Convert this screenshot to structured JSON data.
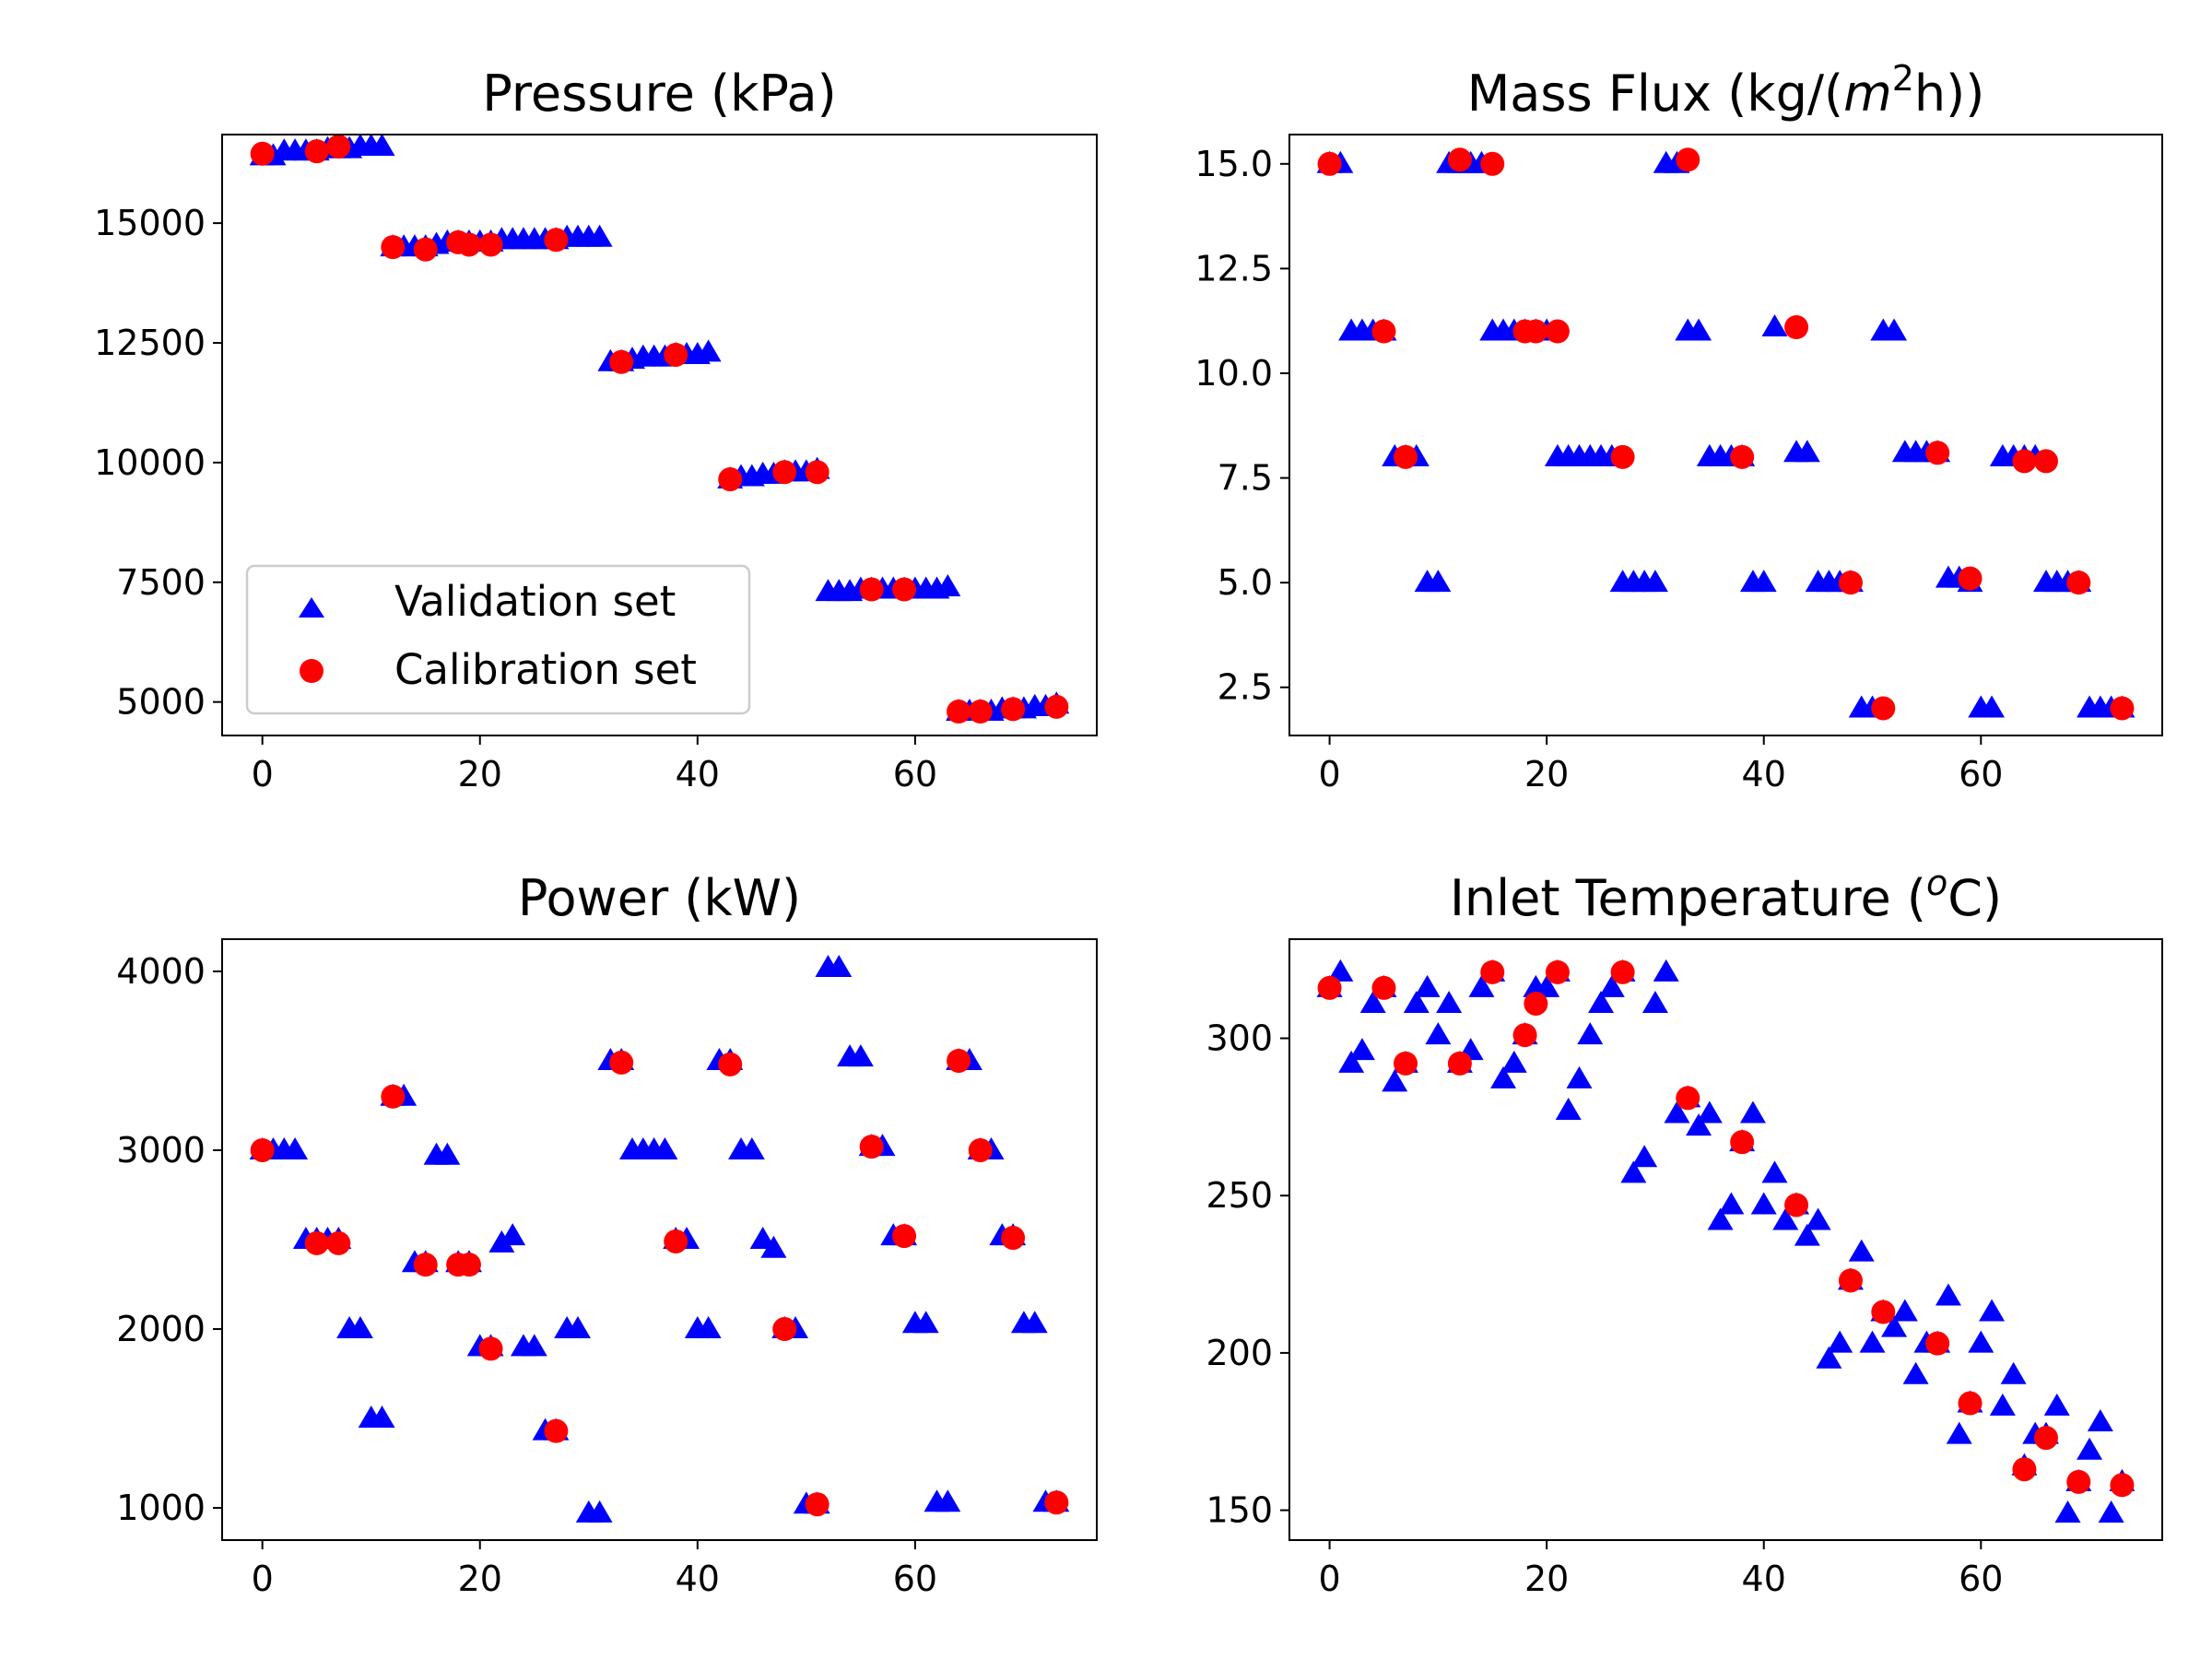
{
  "figure": {
    "legend": {
      "placement": "lower-left of Pressure subplot",
      "items": [
        {
          "label": "Validation set",
          "marker": "triangle",
          "color": "#0000ff"
        },
        {
          "label": "Calibration set",
          "marker": "circle",
          "color": "#ff0000"
        }
      ]
    }
  },
  "chart_data": [
    {
      "type": "scatter",
      "title": "Pressure (kPa)",
      "title_parts": [
        {
          "t": "Pressure (kPa)"
        }
      ],
      "xlabel": "",
      "ylabel": "",
      "xlim": [
        -3.7,
        76.7
      ],
      "ylim": [
        4300,
        16850
      ],
      "xticks": [
        0,
        20,
        40,
        60
      ],
      "yticks": [
        5000,
        7500,
        10000,
        12500,
        15000
      ],
      "legend": true,
      "series": [
        {
          "name": "Validation set",
          "marker": "triangle",
          "color": "#0000ff",
          "x": [
            0,
            1,
            2,
            3,
            4,
            5,
            6,
            7,
            8,
            9,
            10,
            11,
            12,
            13,
            14,
            15,
            16,
            17,
            18,
            19,
            20,
            21,
            22,
            23,
            24,
            25,
            26,
            27,
            28,
            29,
            30,
            31,
            32,
            33,
            34,
            35,
            36,
            37,
            38,
            39,
            40,
            41,
            43,
            44,
            45,
            46,
            47,
            48,
            49,
            50,
            51,
            52,
            53,
            54,
            55,
            56,
            57,
            58,
            59,
            60,
            61,
            62,
            63,
            64,
            65,
            66,
            67,
            68,
            69,
            70,
            71,
            72,
            73
          ],
          "y": [
            16400,
            16400,
            16500,
            16500,
            16500,
            16500,
            16550,
            16550,
            16550,
            16600,
            16600,
            16600,
            14500,
            14500,
            14500,
            14500,
            14550,
            14600,
            14600,
            14600,
            14600,
            14600,
            14650,
            14650,
            14650,
            14650,
            14650,
            14650,
            14700,
            14700,
            14700,
            14700,
            12100,
            12100,
            12150,
            12200,
            12200,
            12200,
            12250,
            12250,
            12250,
            12300,
            9650,
            9700,
            9700,
            9750,
            9750,
            9800,
            9800,
            9800,
            9850,
            7300,
            7300,
            7300,
            7350,
            7350,
            7350,
            7350,
            7350,
            7350,
            7350,
            7350,
            7400,
            4800,
            4800,
            4800,
            4800,
            4850,
            4850,
            4850,
            4900,
            4900,
            4950
          ]
        },
        {
          "name": "Calibration set",
          "marker": "circle",
          "color": "#ff0000",
          "x": [
            0,
            5,
            7,
            12,
            15,
            18,
            19,
            21,
            27,
            33,
            38,
            43,
            48,
            51,
            56,
            59,
            64,
            66,
            69,
            73
          ],
          "y": [
            16450,
            16500,
            16600,
            14500,
            14450,
            14600,
            14550,
            14550,
            14650,
            12100,
            12250,
            9650,
            9800,
            9800,
            7350,
            7350,
            4800,
            4800,
            4850,
            4900
          ]
        }
      ]
    },
    {
      "type": "scatter",
      "title": "Mass Flux (kg/(m2h))",
      "title_parts": [
        {
          "t": "Mass Flux (kg/("
        },
        {
          "t": "m",
          "style": "italic"
        },
        {
          "t": "2",
          "style": "sup"
        },
        {
          "t": "h))"
        }
      ],
      "xlabel": "",
      "ylabel": "",
      "xlim": [
        -3.7,
        76.7
      ],
      "ylim": [
        1.35,
        15.7
      ],
      "xticks": [
        0,
        20,
        40,
        60
      ],
      "yticks": [
        2.5,
        5.0,
        7.5,
        10.0,
        12.5,
        15.0
      ],
      "ytick_labels": [
        "2.5",
        "5.0",
        "7.5",
        "10.0",
        "12.5",
        "15.0"
      ],
      "legend": false,
      "series": [
        {
          "name": "Validation set",
          "marker": "triangle",
          "color": "#0000ff",
          "x": [
            0,
            1,
            2,
            3,
            4,
            5,
            6,
            7,
            8,
            9,
            10,
            11,
            12,
            13,
            14,
            15,
            16,
            17,
            18,
            19,
            20,
            21,
            22,
            23,
            24,
            25,
            26,
            27,
            28,
            29,
            30,
            31,
            32,
            33,
            34,
            35,
            36,
            37,
            38,
            39,
            40,
            41,
            43,
            44,
            45,
            46,
            47,
            48,
            49,
            50,
            51,
            52,
            53,
            54,
            55,
            56,
            57,
            58,
            59,
            60,
            61,
            62,
            63,
            64,
            65,
            66,
            67,
            68,
            69,
            70,
            71,
            72,
            73
          ],
          "y": [
            15,
            15,
            11,
            11,
            11,
            11,
            8,
            8,
            8,
            5,
            5,
            15,
            15,
            15,
            15,
            11,
            11,
            11,
            11,
            11,
            11,
            8,
            8,
            8,
            8,
            8,
            8,
            5,
            5,
            5,
            5,
            15,
            15,
            11,
            11,
            8,
            8,
            8,
            8,
            5,
            5,
            11.1,
            8.1,
            8.1,
            5,
            5,
            5,
            5,
            2,
            2,
            11,
            11,
            8.1,
            8.1,
            8.1,
            8.1,
            5.1,
            5.1,
            5,
            2,
            2,
            8,
            8,
            8,
            8,
            5,
            5,
            5,
            5,
            2,
            2,
            2,
            2
          ]
        },
        {
          "name": "Calibration set",
          "marker": "circle",
          "color": "#ff0000",
          "x": [
            0,
            5,
            7,
            12,
            15,
            18,
            19,
            21,
            27,
            33,
            38,
            43,
            48,
            51,
            56,
            59,
            64,
            66,
            69,
            73
          ],
          "y": [
            15,
            11,
            8,
            15.1,
            15,
            11,
            11,
            11,
            8,
            15.1,
            8,
            11.1,
            5,
            2,
            8.1,
            5.1,
            7.9,
            7.9,
            5,
            2
          ]
        }
      ]
    },
    {
      "type": "scatter",
      "title": "Power (kW)",
      "title_parts": [
        {
          "t": "Power (kW)"
        }
      ],
      "xlabel": "",
      "ylabel": "",
      "xlim": [
        -3.7,
        76.7
      ],
      "ylim": [
        820,
        4180
      ],
      "xticks": [
        0,
        20,
        40,
        60
      ],
      "yticks": [
        1000,
        2000,
        3000,
        4000
      ],
      "legend": false,
      "series": [
        {
          "name": "Validation set",
          "marker": "triangle",
          "color": "#0000ff",
          "x": [
            0,
            1,
            2,
            3,
            4,
            5,
            6,
            7,
            8,
            9,
            10,
            11,
            12,
            13,
            14,
            15,
            16,
            17,
            18,
            19,
            20,
            21,
            22,
            23,
            24,
            25,
            26,
            27,
            28,
            29,
            30,
            31,
            32,
            33,
            34,
            35,
            36,
            37,
            38,
            39,
            40,
            41,
            42,
            43,
            44,
            45,
            46,
            47,
            48,
            49,
            50,
            51,
            52,
            53,
            54,
            55,
            56,
            57,
            58,
            59,
            60,
            61,
            62,
            63,
            64,
            65,
            66,
            67,
            68,
            69,
            70,
            71,
            72,
            73
          ],
          "y": [
            3000,
            3000,
            3000,
            3000,
            2500,
            2500,
            2500,
            2500,
            2000,
            2000,
            1500,
            1500,
            3300,
            3300,
            2370,
            2370,
            2970,
            2970,
            2370,
            2370,
            1900,
            1900,
            2480,
            2520,
            1900,
            1900,
            1430,
            1430,
            2000,
            2000,
            970,
            970,
            3500,
            3500,
            3000,
            3000,
            3000,
            3000,
            2500,
            2500,
            2000,
            2000,
            3500,
            3500,
            3000,
            3000,
            2500,
            2450,
            2000,
            2000,
            1020,
            1020,
            4020,
            4020,
            3520,
            3520,
            3020,
            3020,
            2520,
            2520,
            2030,
            2030,
            1030,
            1030,
            3500,
            3500,
            3000,
            3000,
            2520,
            2520,
            2030,
            2030,
            1030,
            1030
          ]
        },
        {
          "name": "Calibration set",
          "marker": "circle",
          "color": "#ff0000",
          "x": [
            0,
            5,
            7,
            12,
            15,
            18,
            19,
            21,
            27,
            33,
            38,
            43,
            48,
            51,
            56,
            59,
            64,
            66,
            69,
            73
          ],
          "y": [
            3000,
            2480,
            2480,
            3300,
            2360,
            2360,
            2360,
            1890,
            1430,
            3490,
            2490,
            3480,
            2000,
            1020,
            3020,
            2520,
            3500,
            3000,
            2510,
            1030
          ]
        }
      ]
    },
    {
      "type": "scatter",
      "title": "Inlet Temperature (oC)",
      "title_parts": [
        {
          "t": "Inlet Temperature ("
        },
        {
          "t": "o",
          "style": "sup-italic"
        },
        {
          "t": "C)"
        }
      ],
      "xlabel": "",
      "ylabel": "",
      "xlim": [
        -3.7,
        76.7
      ],
      "ylim": [
        140.5,
        331.5
      ],
      "xticks": [
        0,
        20,
        40,
        60
      ],
      "yticks": [
        150,
        200,
        250,
        300
      ],
      "legend": false,
      "series": [
        {
          "name": "Validation set",
          "marker": "triangle",
          "color": "#0000ff",
          "x": [
            0,
            1,
            2,
            3,
            4,
            5,
            6,
            7,
            8,
            9,
            10,
            11,
            12,
            13,
            14,
            15,
            16,
            17,
            18,
            19,
            20,
            21,
            22,
            23,
            24,
            25,
            26,
            27,
            28,
            29,
            30,
            31,
            32,
            33,
            34,
            35,
            36,
            37,
            38,
            39,
            40,
            41,
            42,
            43,
            44,
            45,
            46,
            47,
            48,
            49,
            50,
            51,
            52,
            53,
            54,
            55,
            56,
            57,
            58,
            59,
            60,
            61,
            62,
            63,
            64,
            65,
            66,
            67,
            68,
            69,
            70,
            71,
            72,
            73
          ],
          "y": [
            316,
            321,
            292,
            296,
            311,
            316,
            286,
            292,
            311,
            316,
            301,
            311,
            292,
            296,
            316,
            321,
            287,
            292,
            301,
            316,
            316,
            321,
            277,
            287,
            301,
            311,
            316,
            321,
            257,
            262,
            311,
            321,
            276,
            281,
            272,
            276,
            242,
            247,
            267,
            276,
            247,
            257,
            242,
            247,
            237,
            242,
            198,
            203,
            223,
            232,
            203,
            213,
            208,
            213,
            193,
            203,
            203,
            218,
            174,
            184,
            203,
            213,
            183,
            193,
            164,
            174,
            174,
            183,
            149,
            159,
            169,
            178,
            149,
            159
          ]
        },
        {
          "name": "Calibration set",
          "marker": "circle",
          "color": "#ff0000",
          "x": [
            0,
            5,
            7,
            12,
            15,
            18,
            19,
            21,
            27,
            33,
            38,
            43,
            48,
            51,
            56,
            59,
            64,
            66,
            69,
            73
          ],
          "y": [
            316,
            316,
            292,
            292,
            321,
            301,
            311,
            321,
            321,
            281,
            267,
            247,
            223,
            213,
            203,
            184,
            163,
            173,
            159,
            158
          ]
        }
      ]
    }
  ]
}
